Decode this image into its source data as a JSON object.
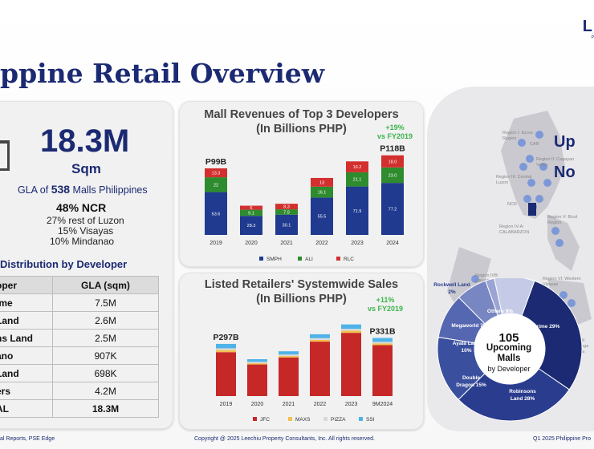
{
  "header": {
    "title": "ppine Retail Overview",
    "logo": "L",
    "logo_sub": "P"
  },
  "summary": {
    "gla_value": "18.3M",
    "gla_unit": "Sqm",
    "gla_prefix": "GLA of ",
    "malls_count": "538",
    "gla_suffix": " Malls Philippines",
    "ncr_share": "48% NCR",
    "distribution": [
      "27% rest of Luzon",
      "15% Visayas",
      "10% Mindanao"
    ]
  },
  "gla_table": {
    "heading": "Distribution by Developer",
    "columns": [
      "oper",
      "GLA (sqm)"
    ],
    "rows": [
      {
        "name": "ime",
        "value": "7.5M"
      },
      {
        "name": "Land",
        "value": "2.6M"
      },
      {
        "name": "ns Land",
        "value": "2.5M"
      },
      {
        "name": "ano",
        "value": "907K"
      },
      {
        "name": "Land",
        "value": "698K"
      },
      {
        "name": "ers",
        "value": "4.2M"
      },
      {
        "name": "AL",
        "value": "18.3M"
      }
    ]
  },
  "revenue_chart": {
    "title_line1": "Mall Revenues of Top 3 Developers",
    "title_line2": "(In Billions PHP)",
    "growth_line1": "+19%",
    "growth_line2": "vs FY2019",
    "callout_left": "P99B",
    "callout_right": "P118B"
  },
  "sales_chart": {
    "title_line1": "Listed Retailers' Systemwide Sales",
    "title_line2": "(In Billions PHP)",
    "growth_line1": "+11%",
    "growth_line2": "vs FY2019",
    "callout_left": "P297B",
    "callout_right": "P331B"
  },
  "map": {
    "upcoming_title_1": "Up",
    "upcoming_title_2": "No",
    "region_labels": [
      "Region I: Ilocos Region",
      "CAR",
      "Region II: Cagayan Valley",
      "Region III: Central Luzon",
      "NCR",
      "Region IV-A: CALABARZON",
      "Region V: Bicol Region",
      "Region IVB: MIMAROPA",
      "Region VI: Western Visayas",
      "Region IX: Zamboanga Peninsula"
    ]
  },
  "donut": {
    "center_count": "105",
    "center_line1": "Upcoming",
    "center_line2": "Malls",
    "center_line3": "by Developer",
    "labels": [
      {
        "name": "SM Prime",
        "pct": "29%"
      },
      {
        "name": "Robinsons Land",
        "pct": "28%"
      },
      {
        "name": "Double Dragon",
        "pct": "15%"
      },
      {
        "name": "Ayala Land",
        "pct": "10%"
      },
      {
        "name": "Megaworld",
        "pct": "7%"
      },
      {
        "name": "Rockwell Land",
        "pct": "2%"
      },
      {
        "name": "Others",
        "pct": "9%"
      }
    ]
  },
  "footer": {
    "source": "al Reports, PSE Edge",
    "copyright": "Copyright @ 2025 Leechiu Property Consultants, Inc. All rights reserved.",
    "report": "Q1 2025 Philippine Pro"
  },
  "chart_data": [
    {
      "type": "bar",
      "title": "Mall Revenues of Top 3 Developers (In Billions PHP)",
      "categories": [
        "2019",
        "2020",
        "2021",
        "2022",
        "2023",
        "2024"
      ],
      "stacked": true,
      "series": [
        {
          "name": "SMPH",
          "color": "#1f3a8f",
          "values": [
            63.6,
            28.3,
            30.1,
            55.5,
            71.9,
            77.2
          ]
        },
        {
          "name": "ALI",
          "color": "#2e8b2e",
          "values": [
            22,
            9.1,
            7.9,
            16.1,
            21.1,
            23.0
          ]
        },
        {
          "name": "RLC",
          "color": "#d32f2f",
          "values": [
            13.3,
            6,
            8.3,
            13,
            16.2,
            18.0
          ]
        }
      ],
      "value_labels": {
        "SMPH": [
          "63.6",
          "28.3",
          "30.1",
          "55.5",
          "71.9",
          "77.2"
        ],
        "ALI": [
          "22",
          "9.1",
          "7.9",
          "16.1",
          "21.1",
          "23.0"
        ],
        "RLC": [
          "13.3",
          "6",
          "8.3",
          "13",
          "16.2",
          "18.0"
        ]
      },
      "ylim": [
        0,
        125
      ]
    },
    {
      "type": "bar",
      "title": "Listed Retailers' Systemwide Sales (In Billions PHP)",
      "categories": [
        "2019",
        "2020",
        "2021",
        "2022",
        "2023",
        "9M2024"
      ],
      "stacked": true,
      "series": [
        {
          "name": "JFC",
          "color": "#c62828",
          "values": [
            250,
            180,
            220,
            310,
            360,
            290
          ]
        },
        {
          "name": "MAXS",
          "color": "#f2c14e",
          "values": [
            12,
            7,
            8,
            10,
            12,
            10
          ]
        },
        {
          "name": "PIZZA",
          "color": "#d9d9d9",
          "values": [
            10,
            8,
            9,
            10,
            11,
            9
          ]
        },
        {
          "name": "SSI",
          "color": "#4fb3e8",
          "values": [
            25,
            15,
            18,
            22,
            25,
            22
          ]
        }
      ],
      "ylim": [
        0,
        420
      ]
    },
    {
      "type": "pie",
      "title": "105 Upcoming Malls by Developer",
      "categories": [
        "SM Prime",
        "Robinsons Land",
        "Double Dragon",
        "Ayala Land",
        "Megaworld",
        "Rockwell Land",
        "Others"
      ],
      "values": [
        29,
        28,
        15,
        10,
        7,
        2,
        9
      ],
      "colors": [
        "#1b2a72",
        "#2a3c8e",
        "#3a4f9e",
        "#5567b0",
        "#7887c2",
        "#9aa5d3",
        "#c5cbe6"
      ]
    }
  ]
}
